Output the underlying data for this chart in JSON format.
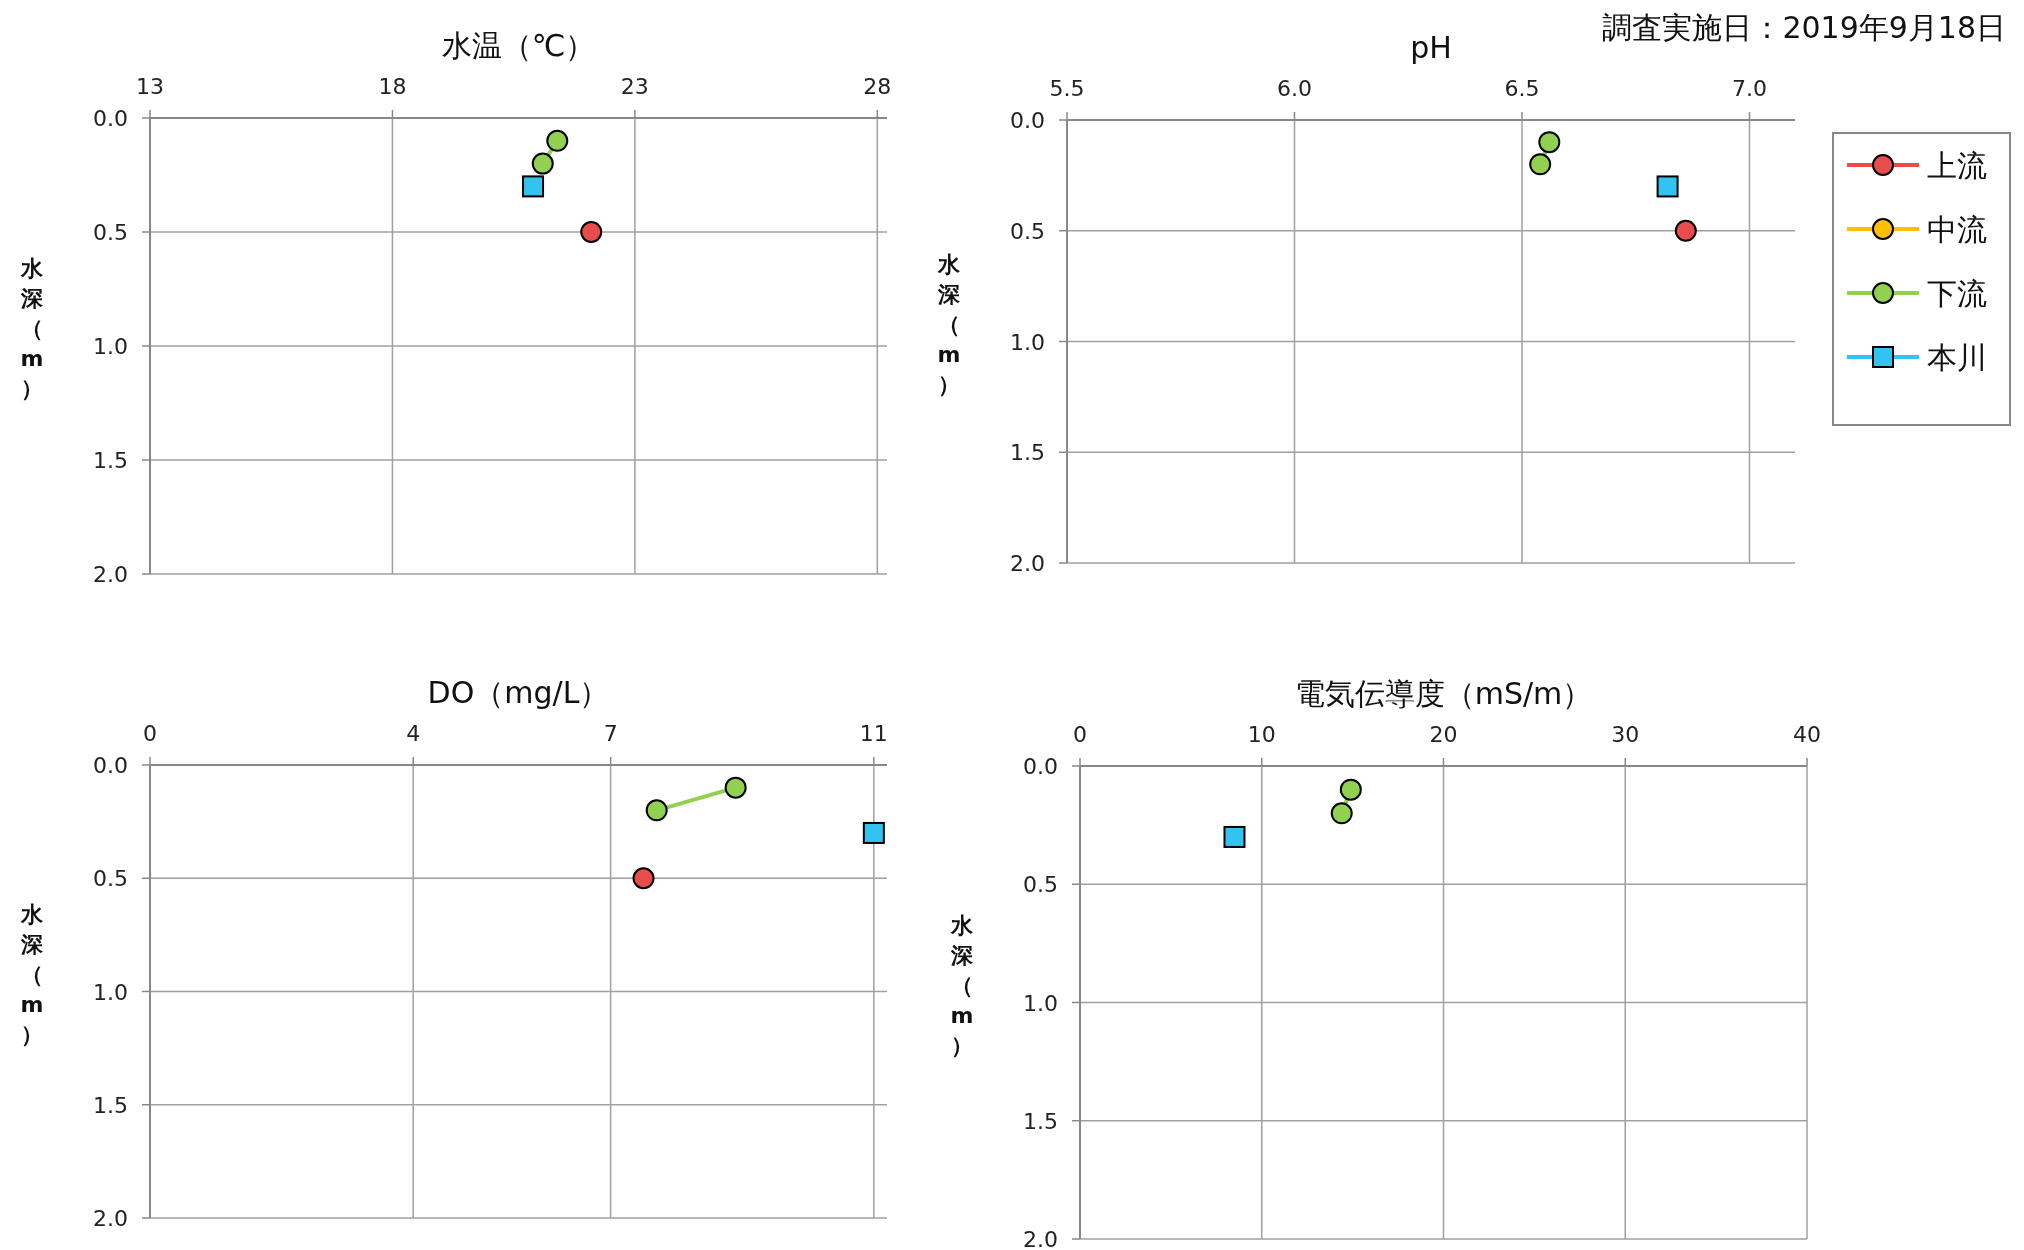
{
  "chart_data": [
    {
      "type": "line",
      "title": "水温（℃）",
      "ylabel": "水深（m）",
      "xlim": [
        13,
        28.2
      ],
      "xticks": [
        13,
        18,
        23,
        28
      ],
      "ylim": [
        2,
        0
      ],
      "yticks": [
        {
          "value": 0,
          "label": "0.0"
        },
        {
          "value": 0.5,
          "label": "0.5"
        },
        {
          "value": 1,
          "label": "1.0"
        },
        {
          "value": 1.5,
          "label": "1.5"
        },
        {
          "value": 2,
          "label": "2.0"
        }
      ],
      "grid": true,
      "legend": false,
      "series": [
        {
          "color": "#e84c4c",
          "marker": "circle",
          "x": [
            22.1
          ],
          "values": [
            0.5
          ]
        },
        {
          "color": "#92d050",
          "marker": "circle",
          "x": [
            21.4,
            21.1
          ],
          "values": [
            0.1,
            0.2
          ]
        },
        {
          "color": "#33c3f0",
          "marker": "square",
          "x": [
            20.9
          ],
          "values": [
            0.3
          ]
        }
      ]
    },
    {
      "type": "line",
      "title": "pH",
      "ylabel": "水深（m）",
      "xlim": [
        5.5,
        7.1
      ],
      "xticks": [
        {
          "value": 5.5,
          "label": "5.5"
        },
        {
          "value": 6,
          "label": "6.0"
        },
        {
          "value": 6.5,
          "label": "6.5"
        },
        {
          "value": 7,
          "label": "7.0"
        }
      ],
      "ylim": [
        2,
        0
      ],
      "yticks": [
        {
          "value": 0,
          "label": "0.0"
        },
        {
          "value": 0.5,
          "label": "0.5"
        },
        {
          "value": 1,
          "label": "1.0"
        },
        {
          "value": 1.5,
          "label": "1.5"
        },
        {
          "value": 2,
          "label": "2.0"
        }
      ],
      "grid": true,
      "legend": "right",
      "annotations": [
        "調査実施日：2019年9月18日"
      ],
      "series": [
        {
          "name": "上流",
          "color": "#e84c4c",
          "marker": "circle",
          "x": [
            6.86
          ],
          "values": [
            0.5
          ]
        },
        {
          "name": "中流",
          "color": "#ffc000",
          "marker": "circle"
        },
        {
          "name": "下流",
          "color": "#92d050",
          "marker": "circle",
          "x": [
            6.56,
            6.54
          ],
          "values": [
            0.1,
            0.2
          ]
        },
        {
          "name": "本川",
          "color": "#33c3f0",
          "marker": "square",
          "x": [
            6.82
          ],
          "values": [
            0.3
          ]
        }
      ]
    },
    {
      "type": "line",
      "title": "DO（mg/L）",
      "ylabel": "水深（m）",
      "xlim": [
        0,
        11.2
      ],
      "xticks": [
        0,
        4,
        7,
        11
      ],
      "ylim": [
        2,
        0
      ],
      "yticks": [
        {
          "value": 0,
          "label": "0.0"
        },
        {
          "value": 0.5,
          "label": "0.5"
        },
        {
          "value": 1,
          "label": "1.0"
        },
        {
          "value": 1.5,
          "label": "1.5"
        },
        {
          "value": 2,
          "label": "2.0"
        }
      ],
      "grid": true,
      "legend": false,
      "series": [
        {
          "color": "#e84c4c",
          "marker": "circle",
          "x": [
            7.5
          ],
          "values": [
            0.5
          ]
        },
        {
          "color": "#92d050",
          "marker": "circle",
          "x": [
            8.9,
            7.7
          ],
          "values": [
            0.1,
            0.2
          ]
        },
        {
          "color": "#33c3f0",
          "marker": "square",
          "x": [
            11
          ],
          "values": [
            0.3
          ]
        }
      ]
    },
    {
      "type": "line",
      "title": "電気伝導度（mS/m）",
      "ylabel": "水深（m）",
      "xlim": [
        0,
        40
      ],
      "xticks": [
        0,
        10,
        20,
        30,
        40
      ],
      "ylim": [
        2,
        0
      ],
      "yticks": [
        {
          "value": 0,
          "label": "0.0"
        },
        {
          "value": 0.5,
          "label": "0.5"
        },
        {
          "value": 1,
          "label": "1.0"
        },
        {
          "value": 1.5,
          "label": "1.5"
        },
        {
          "value": 2,
          "label": "2.0"
        }
      ],
      "grid": true,
      "legend": false,
      "series": [
        {
          "color": "#92d050",
          "marker": "circle",
          "x": [
            14.9,
            14.4
          ],
          "values": [
            0.1,
            0.2
          ]
        },
        {
          "color": "#33c3f0",
          "marker": "square",
          "x": [
            8.5
          ],
          "values": [
            0.3
          ]
        }
      ]
    }
  ]
}
